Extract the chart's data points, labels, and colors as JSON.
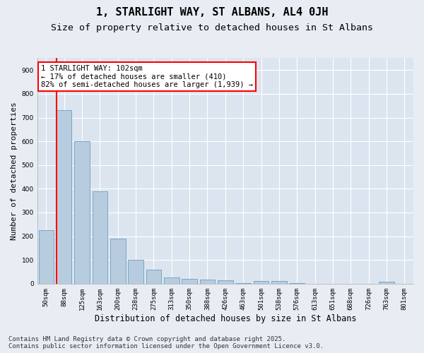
{
  "title": "1, STARLIGHT WAY, ST ALBANS, AL4 0JH",
  "subtitle": "Size of property relative to detached houses in St Albans",
  "xlabel": "Distribution of detached houses by size in St Albans",
  "ylabel": "Number of detached properties",
  "categories": [
    "50sqm",
    "88sqm",
    "125sqm",
    "163sqm",
    "200sqm",
    "238sqm",
    "275sqm",
    "313sqm",
    "350sqm",
    "388sqm",
    "426sqm",
    "463sqm",
    "501sqm",
    "538sqm",
    "576sqm",
    "613sqm",
    "651sqm",
    "688sqm",
    "726sqm",
    "763sqm",
    "801sqm"
  ],
  "values": [
    225,
    730,
    600,
    390,
    190,
    100,
    58,
    27,
    20,
    17,
    15,
    3,
    10,
    10,
    3,
    0,
    0,
    0,
    0,
    8,
    0
  ],
  "bar_color": "#b8ccdf",
  "bar_edge_color": "#6a9fc0",
  "vline_color": "red",
  "annotation_text": "1 STARLIGHT WAY: 102sqm\n← 17% of detached houses are smaller (410)\n82% of semi-detached houses are larger (1,939) →",
  "annotation_box_color": "white",
  "annotation_box_edge_color": "red",
  "ylim": [
    0,
    950
  ],
  "yticks": [
    0,
    100,
    200,
    300,
    400,
    500,
    600,
    700,
    800,
    900
  ],
  "background_color": "#e8edf4",
  "plot_background_color": "#dce5ef",
  "grid_color": "white",
  "footer_line1": "Contains HM Land Registry data © Crown copyright and database right 2025.",
  "footer_line2": "Contains public sector information licensed under the Open Government Licence v3.0.",
  "title_fontsize": 11,
  "subtitle_fontsize": 9.5,
  "xlabel_fontsize": 8.5,
  "ylabel_fontsize": 8,
  "tick_fontsize": 6.5,
  "annotation_fontsize": 7.5,
  "footer_fontsize": 6.5
}
